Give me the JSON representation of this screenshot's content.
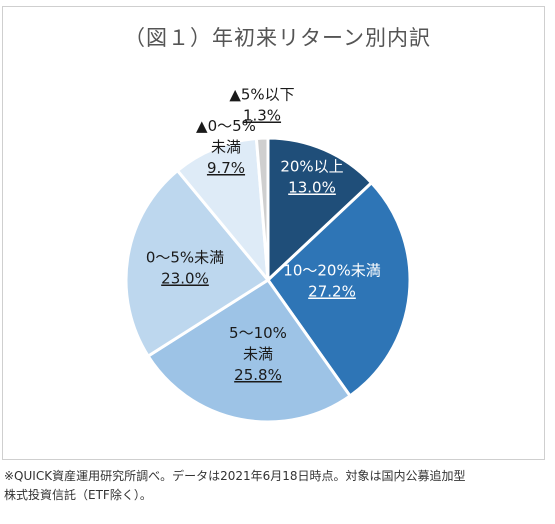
{
  "title": "（図１）年初来リターン別内訳",
  "note_line1": "※QUICK資産運用研究所調べ。データは2021年6月18日時点。対象は国内公募追加型",
  "note_line2": "株式投資信託（ETF除く）。",
  "chart_data": {
    "type": "pie",
    "title": "（図１）年初来リターン別内訳",
    "slices": [
      {
        "label_lines": [
          "20%以上"
        ],
        "value": 13.0,
        "value_label": "13.0%",
        "color": "#1f4e79",
        "text_color": "#ffffff"
      },
      {
        "label_lines": [
          "10～20%未満"
        ],
        "value": 27.2,
        "value_label": "27.2%",
        "color": "#2e75b6",
        "text_color": "#ffffff"
      },
      {
        "label_lines": [
          "5～10%",
          "未満"
        ],
        "value": 25.8,
        "value_label": "25.8%",
        "color": "#9dc3e6",
        "text_color": "#1a1a1a"
      },
      {
        "label_lines": [
          "0～5%未満"
        ],
        "value": 23.0,
        "value_label": "23.0%",
        "color": "#bdd7ee",
        "text_color": "#1a1a1a"
      },
      {
        "label_lines": [
          "▲0～5%",
          "未満"
        ],
        "value": 9.7,
        "value_label": "9.7%",
        "color": "#deebf7",
        "text_color": "#1a1a1a"
      },
      {
        "label_lines": [
          "▲5%以下"
        ],
        "value": 1.3,
        "value_label": "1.3%",
        "color": "#cfcfcf",
        "text_color": "#1a1a1a"
      }
    ],
    "start": "12 o'clock",
    "direction": "clockwise",
    "legend": "none"
  }
}
